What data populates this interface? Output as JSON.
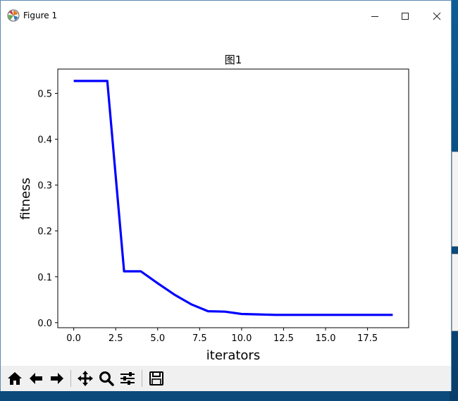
{
  "window": {
    "title": "Figure 1",
    "controls": {
      "minimize": "minimize",
      "maximize": "maximize",
      "close": "close"
    }
  },
  "toolbar": {
    "buttons": [
      {
        "name": "home",
        "icon": "home-icon"
      },
      {
        "name": "back",
        "icon": "arrow-left-icon"
      },
      {
        "name": "forward",
        "icon": "arrow-right-icon"
      },
      {
        "name": "pan",
        "icon": "move-icon"
      },
      {
        "name": "zoom",
        "icon": "magnifier-icon"
      },
      {
        "name": "configure-subplots",
        "icon": "sliders-icon"
      },
      {
        "name": "save",
        "icon": "floppy-icon"
      }
    ]
  },
  "chart_data": {
    "type": "line",
    "title": "图1",
    "xlabel": "iterators",
    "ylabel": "fitness",
    "xlim": [
      -0.95,
      19.95
    ],
    "ylim": [
      -0.011,
      0.553
    ],
    "xticks": [
      0,
      2.5,
      5,
      7.5,
      10,
      12.5,
      15,
      17.5
    ],
    "xtick_labels": [
      "0.0",
      "2.5",
      "5.0",
      "7.5",
      "10.0",
      "12.5",
      "15.0",
      "17.5"
    ],
    "yticks": [
      0,
      0.1,
      0.2,
      0.3,
      0.4,
      0.5
    ],
    "ytick_labels": [
      "0.0",
      "0.1",
      "0.2",
      "0.3",
      "0.4",
      "0.5"
    ],
    "grid": false,
    "series": [
      {
        "color": "#0000ff",
        "x": [
          0,
          1,
          2,
          3,
          4,
          5,
          6,
          7,
          8,
          9,
          10,
          11,
          12,
          13,
          14,
          15,
          16,
          17,
          18,
          19
        ],
        "values": [
          0.527,
          0.527,
          0.527,
          0.112,
          0.112,
          0.086,
          0.061,
          0.04,
          0.025,
          0.024,
          0.019,
          0.018,
          0.017,
          0.017,
          0.017,
          0.017,
          0.017,
          0.017,
          0.017,
          0.017
        ]
      }
    ]
  }
}
